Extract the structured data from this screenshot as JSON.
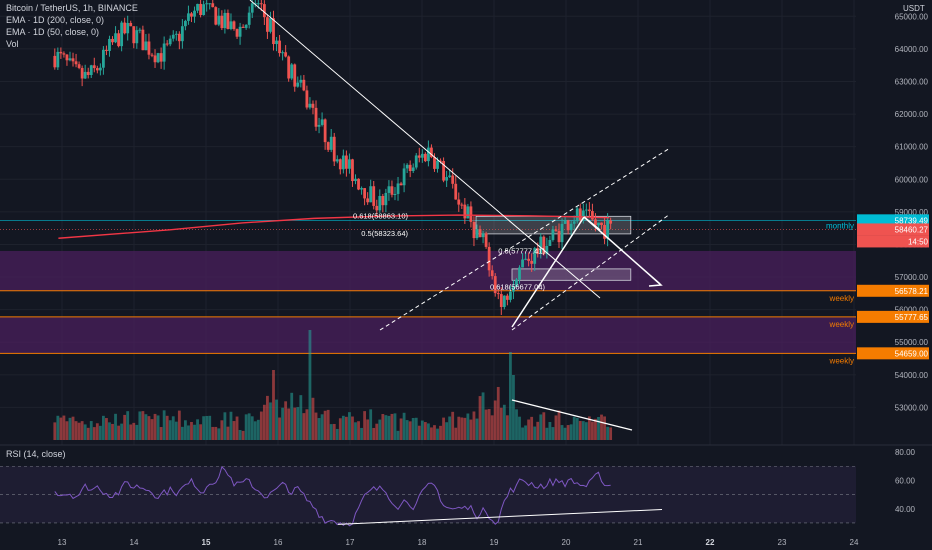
{
  "header": {
    "title": "Bitcoin / TetherUS, 1h, BINANCE",
    "ema200": "EMA · 1D (200, close, 0)",
    "ema50": "EMA · 1D (50, close, 0)",
    "vol": "Vol",
    "currency": "USDT",
    "rsi": "RSI (14, close)"
  },
  "colors": {
    "background": "#131722",
    "up": "#26a69a",
    "down": "#ef5350",
    "ema": "#f23645",
    "zone": "#4a1f5c",
    "weekly": "#f57c00",
    "rsi": "#7e57c2"
  },
  "chart_data": {
    "type": "candlestick",
    "symbol": "BTCUSDT",
    "interval": "1h",
    "y_axis_ticks": [
      "65000.00",
      "64000.00",
      "63000.00",
      "62000.00",
      "61000.00",
      "60000.00",
      "59000.00",
      "58000.00",
      "57000.00",
      "56000.00",
      "55000.00",
      "54000.00",
      "53000.00"
    ],
    "ylim": [
      52000,
      65500
    ],
    "x_axis_ticks": [
      "13",
      "14",
      "15",
      "16",
      "17",
      "18",
      "19",
      "20",
      "21",
      "22",
      "23",
      "24"
    ],
    "price_labels": [
      {
        "value": "58739.49",
        "color": "#00bcd4"
      },
      {
        "value": "58460.27",
        "color": "#ef5350"
      },
      {
        "value": "14:50",
        "color": "#ef5350"
      },
      {
        "value": "56578.21",
        "color": "#f57c00"
      },
      {
        "value": "55777.65",
        "color": "#f57c00"
      },
      {
        "value": "54659.00",
        "color": "#f57c00"
      }
    ],
    "level_labels": [
      "monthly",
      "weekly",
      "weekly",
      "weekly"
    ],
    "fib_labels": [
      "0.618(58863.10)",
      "0.5(58323.64)",
      "0.5(57777.41)",
      "0.618(56677.04)"
    ],
    "rsi_axis_ticks": [
      "80.00",
      "60.00",
      "40.00"
    ],
    "rsi_ylim": [
      25,
      85
    ],
    "zones": [
      [
        56578.21,
        57800
      ],
      [
        54659.0,
        55777.65
      ]
    ],
    "weekly_levels": [
      56578.21,
      55777.65,
      54659.0
    ],
    "monthly_level": 58739.49,
    "box_fib": [
      58323.64,
      58863.1
    ],
    "box_target": [
      56900,
      57250
    ],
    "last_price": 58460.27,
    "ema200_path": [
      [
        12.95,
        58190
      ],
      [
        14.5,
        58450
      ],
      [
        15.5,
        58660
      ],
      [
        16.5,
        58800
      ],
      [
        17.5,
        58870
      ],
      [
        18.5,
        58900
      ],
      [
        19.5,
        58880
      ],
      [
        20.3,
        58840
      ],
      [
        20.6,
        58820
      ]
    ],
    "key_points": [
      {
        "t": 15.6,
        "p": 66000,
        "note": "high"
      },
      {
        "t": 16.2,
        "p": 63200
      },
      {
        "t": 16.8,
        "p": 60800
      },
      {
        "t": 17.4,
        "p": 59200
      },
      {
        "t": 17.9,
        "p": 60500
      },
      {
        "t": 18.1,
        "p": 60900
      },
      {
        "t": 18.4,
        "p": 59800
      },
      {
        "t": 18.9,
        "p": 57800
      },
      {
        "t": 19.1,
        "p": 56100,
        "note": "low"
      },
      {
        "t": 19.3,
        "p": 57200
      },
      {
        "t": 19.9,
        "p": 58400
      },
      {
        "t": 20.1,
        "p": 58900
      },
      {
        "t": 20.6,
        "p": 58460
      }
    ]
  }
}
